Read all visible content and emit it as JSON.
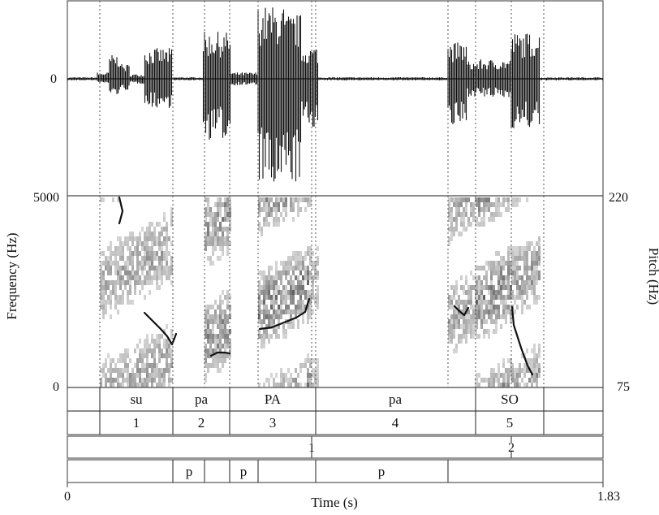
{
  "waveform": {
    "y_tick_label": "0"
  },
  "spectrogram": {
    "y_axis_label": "Frequency (Hz)",
    "y_max_label": "5000",
    "y_min_label": "0",
    "pitch_axis_label": "Pitch (Hz)",
    "pitch_max_label": "220",
    "pitch_min_label": "75"
  },
  "time_axis": {
    "label": "Time (s)",
    "start_label": "0",
    "end_label": "1.83"
  },
  "tiers": {
    "syllables": [
      "su",
      "pa",
      "PA",
      "pa",
      "SO"
    ],
    "words": [
      "1",
      "2",
      "3",
      "4",
      "5"
    ],
    "points": [
      "1",
      "2"
    ],
    "pauses": [
      "p",
      "p",
      "p"
    ]
  },
  "colors": {
    "ink": "#111111",
    "frame": "#555555",
    "background": "#ffffff"
  }
}
